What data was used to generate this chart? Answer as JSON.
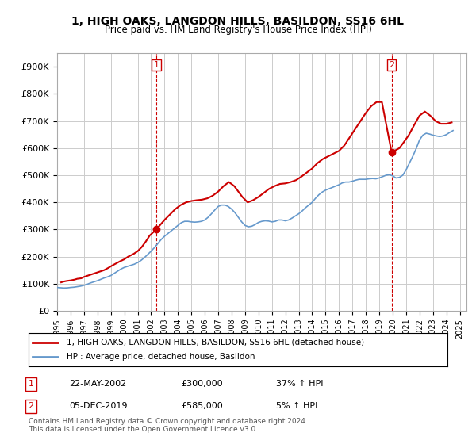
{
  "title": "1, HIGH OAKS, LANGDON HILLS, BASILDON, SS16 6HL",
  "subtitle": "Price paid vs. HM Land Registry's House Price Index (HPI)",
  "xlabel": "",
  "ylabel": "",
  "ylim": [
    0,
    950000
  ],
  "yticks": [
    0,
    100000,
    200000,
    300000,
    400000,
    500000,
    600000,
    700000,
    800000,
    900000
  ],
  "ytick_labels": [
    "£0",
    "£100K",
    "£200K",
    "£300K",
    "£400K",
    "£500K",
    "£600K",
    "£700K",
    "£800K",
    "£900K"
  ],
  "xlim_start": 1995.0,
  "xlim_end": 2025.5,
  "xtick_years": [
    1995,
    1996,
    1997,
    1998,
    1999,
    2000,
    2001,
    2002,
    2003,
    2004,
    2005,
    2006,
    2007,
    2008,
    2009,
    2010,
    2011,
    2012,
    2013,
    2014,
    2015,
    2016,
    2017,
    2018,
    2019,
    2020,
    2021,
    2022,
    2023,
    2024,
    2025
  ],
  "sale1_x": 2002.388,
  "sale1_y": 300000,
  "sale1_label": "1",
  "sale1_date": "22-MAY-2002",
  "sale1_price": "£300,000",
  "sale1_hpi": "37% ↑ HPI",
  "sale2_x": 2019.92,
  "sale2_y": 585000,
  "sale2_label": "2",
  "sale2_date": "05-DEC-2019",
  "sale2_price": "£585,000",
  "sale2_hpi": "5% ↑ HPI",
  "line_color_red": "#cc0000",
  "line_color_blue": "#6699cc",
  "dashed_vline_color": "#cc0000",
  "grid_color": "#cccccc",
  "background_color": "#ffffff",
  "legend_label_red": "1, HIGH OAKS, LANGDON HILLS, BASILDON, SS16 6HL (detached house)",
  "legend_label_blue": "HPI: Average price, detached house, Basildon",
  "footer_text": "Contains HM Land Registry data © Crown copyright and database right 2024.\nThis data is licensed under the Open Government Licence v3.0.",
  "hpi_data_x": [
    1995.0,
    1995.25,
    1995.5,
    1995.75,
    1996.0,
    1996.25,
    1996.5,
    1996.75,
    1997.0,
    1997.25,
    1997.5,
    1997.75,
    1998.0,
    1998.25,
    1998.5,
    1998.75,
    1999.0,
    1999.25,
    1999.5,
    1999.75,
    2000.0,
    2000.25,
    2000.5,
    2000.75,
    2001.0,
    2001.25,
    2001.5,
    2001.75,
    2002.0,
    2002.25,
    2002.5,
    2002.75,
    2003.0,
    2003.25,
    2003.5,
    2003.75,
    2004.0,
    2004.25,
    2004.5,
    2004.75,
    2005.0,
    2005.25,
    2005.5,
    2005.75,
    2006.0,
    2006.25,
    2006.5,
    2006.75,
    2007.0,
    2007.25,
    2007.5,
    2007.75,
    2008.0,
    2008.25,
    2008.5,
    2008.75,
    2009.0,
    2009.25,
    2009.5,
    2009.75,
    2010.0,
    2010.25,
    2010.5,
    2010.75,
    2011.0,
    2011.25,
    2011.5,
    2011.75,
    2012.0,
    2012.25,
    2012.5,
    2012.75,
    2013.0,
    2013.25,
    2013.5,
    2013.75,
    2014.0,
    2014.25,
    2014.5,
    2014.75,
    2015.0,
    2015.25,
    2015.5,
    2015.75,
    2016.0,
    2016.25,
    2016.5,
    2016.75,
    2017.0,
    2017.25,
    2017.5,
    2017.75,
    2018.0,
    2018.25,
    2018.5,
    2018.75,
    2019.0,
    2019.25,
    2019.5,
    2019.75,
    2020.0,
    2020.25,
    2020.5,
    2020.75,
    2021.0,
    2021.25,
    2021.5,
    2021.75,
    2022.0,
    2022.25,
    2022.5,
    2022.75,
    2023.0,
    2023.25,
    2023.5,
    2023.75,
    2024.0,
    2024.25,
    2024.5
  ],
  "hpi_data_y": [
    86000,
    85000,
    84000,
    84500,
    86000,
    87000,
    89000,
    91000,
    94000,
    98000,
    103000,
    107000,
    111000,
    116000,
    121000,
    125000,
    130000,
    138000,
    146000,
    154000,
    160000,
    164000,
    168000,
    172000,
    178000,
    186000,
    196000,
    208000,
    220000,
    233000,
    248000,
    263000,
    275000,
    285000,
    295000,
    305000,
    315000,
    325000,
    330000,
    330000,
    328000,
    327000,
    328000,
    330000,
    335000,
    345000,
    358000,
    372000,
    385000,
    390000,
    390000,
    385000,
    375000,
    362000,
    345000,
    328000,
    315000,
    310000,
    312000,
    318000,
    326000,
    330000,
    332000,
    331000,
    328000,
    330000,
    335000,
    335000,
    332000,
    335000,
    342000,
    350000,
    358000,
    368000,
    380000,
    390000,
    400000,
    415000,
    428000,
    438000,
    445000,
    450000,
    455000,
    460000,
    465000,
    472000,
    475000,
    475000,
    478000,
    482000,
    485000,
    485000,
    485000,
    487000,
    488000,
    487000,
    490000,
    495000,
    500000,
    502000,
    498000,
    490000,
    492000,
    500000,
    520000,
    545000,
    570000,
    598000,
    630000,
    648000,
    655000,
    652000,
    648000,
    645000,
    643000,
    645000,
    650000,
    658000,
    665000
  ],
  "price_data_x": [
    1995.3,
    1995.5,
    1995.7,
    1996.0,
    1996.3,
    1996.5,
    1996.8,
    1997.0,
    1997.3,
    1997.6,
    1997.9,
    1998.2,
    1998.5,
    1998.8,
    1999.1,
    1999.4,
    1999.7,
    2000.0,
    2000.3,
    2000.7,
    2001.0,
    2001.3,
    2001.6,
    2001.9,
    2002.388,
    2002.7,
    2003.0,
    2003.4,
    2003.8,
    2004.2,
    2004.6,
    2005.0,
    2005.4,
    2005.8,
    2006.2,
    2006.6,
    2007.0,
    2007.4,
    2007.8,
    2008.2,
    2008.5,
    2008.8,
    2009.2,
    2009.6,
    2010.0,
    2010.4,
    2010.8,
    2011.2,
    2011.6,
    2012.0,
    2012.4,
    2012.8,
    2013.2,
    2013.6,
    2014.0,
    2014.4,
    2014.8,
    2015.2,
    2015.6,
    2016.0,
    2016.4,
    2016.8,
    2017.2,
    2017.6,
    2018.0,
    2018.4,
    2018.8,
    2019.2,
    2019.92,
    2020.2,
    2020.5,
    2020.8,
    2021.2,
    2021.6,
    2022.0,
    2022.4,
    2022.8,
    2023.2,
    2023.6,
    2024.0,
    2024.4
  ],
  "price_data_y": [
    105000,
    108000,
    110000,
    112000,
    115000,
    118000,
    120000,
    125000,
    130000,
    135000,
    140000,
    145000,
    150000,
    158000,
    167000,
    175000,
    183000,
    190000,
    200000,
    210000,
    220000,
    235000,
    255000,
    278000,
    300000,
    318000,
    335000,
    355000,
    375000,
    390000,
    400000,
    405000,
    408000,
    410000,
    415000,
    425000,
    440000,
    460000,
    475000,
    460000,
    440000,
    420000,
    400000,
    408000,
    420000,
    435000,
    450000,
    460000,
    468000,
    470000,
    475000,
    482000,
    495000,
    510000,
    525000,
    545000,
    560000,
    570000,
    580000,
    590000,
    610000,
    640000,
    670000,
    700000,
    730000,
    755000,
    770000,
    770000,
    585000,
    592000,
    600000,
    620000,
    648000,
    685000,
    720000,
    735000,
    720000,
    700000,
    690000,
    690000,
    695000
  ]
}
